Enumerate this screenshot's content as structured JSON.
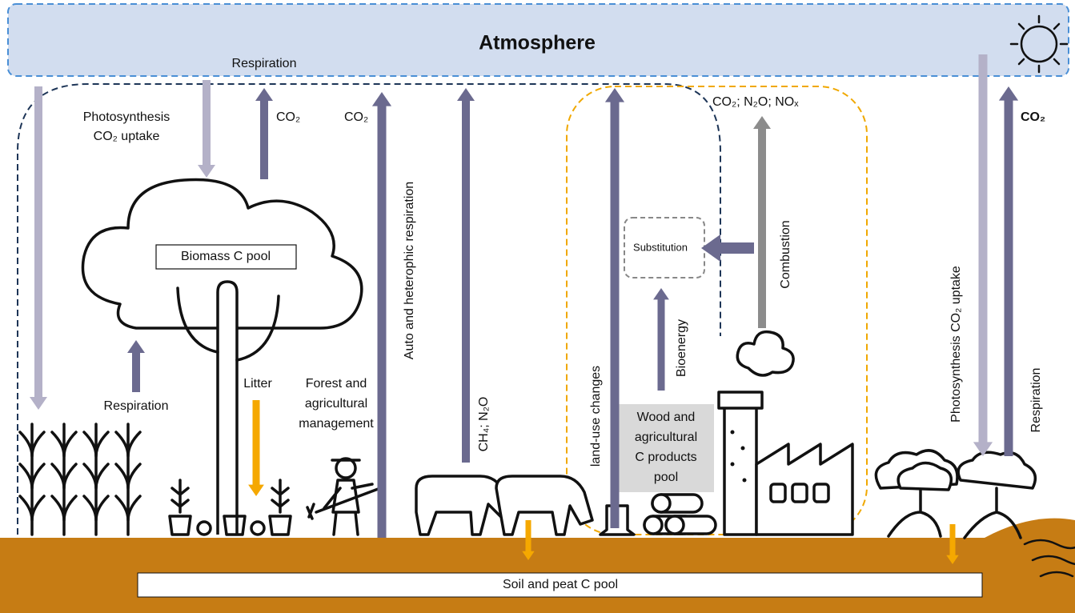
{
  "atmosphere": "Atmosphere",
  "respiration_top": "Respiration",
  "photosynthesis_left": [
    "Photosynthesis",
    "CO₂ uptake"
  ],
  "co2_tree": "CO₂",
  "co2_auto": "CO₂",
  "biomass_pool": "Biomass C pool",
  "respiration_tree": "Respiration",
  "litter": "Litter",
  "forest_management": [
    "Forest and",
    "agricultural",
    "management"
  ],
  "auto_respiration": "Auto and heterophic respiration",
  "ch4_n2o": "CH₄; N₂O",
  "land_use": "land-use changes",
  "substitution": "Substitution",
  "bioenergy": "Bioenergy",
  "wood_pool": [
    "Wood and",
    "agricultural",
    "C products",
    "pool"
  ],
  "combustion_gases": "CO₂; N₂O; NOₓ",
  "combustion": "Combustion",
  "photosynthesis_right": "Photosynthesis CO₂ uptake",
  "respiration_right": "Respiration",
  "co2_right": "CO₂",
  "soil_pool": "Soil and peat C pool"
}
